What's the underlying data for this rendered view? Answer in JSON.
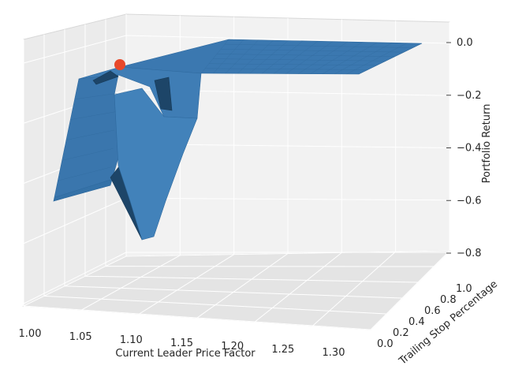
{
  "chart_data": {
    "type": "surface3d",
    "title": "",
    "xlabel": "Current Leader Price Factor",
    "ylabel": "Trailing Stop Percentage",
    "zlabel": "Portfolio Return",
    "x_ticks": [
      "1.00",
      "1.05",
      "1.10",
      "1.15",
      "1.20",
      "1.25",
      "1.30"
    ],
    "y_ticks": [
      "0.0",
      "0.2",
      "0.4",
      "0.6",
      "0.8",
      "1.0"
    ],
    "z_ticks": [
      "0.0",
      "−0.2",
      "−0.4",
      "−0.6",
      "−0.8"
    ],
    "xlim": [
      1.0,
      1.3
    ],
    "ylim": [
      0.0,
      1.0
    ],
    "zlim": [
      -0.8,
      0.0
    ],
    "grid": true,
    "surface_color": "#3b78b0",
    "surface_dark": "#1d4568",
    "marker_color": "#e8482a",
    "marker": {
      "x": 1.0,
      "y": 1.0,
      "z": 0.0
    },
    "surface_points": [
      {
        "x": 1.0,
        "y": 0.0,
        "z": -0.6
      },
      {
        "x": 1.0,
        "y": 1.0,
        "z": -0.12
      },
      {
        "x": 1.08,
        "y": 0.0,
        "z": -0.82
      },
      {
        "x": 1.12,
        "y": 0.0,
        "z": -0.7
      },
      {
        "x": 1.13,
        "y": 1.0,
        "z": -0.08
      },
      {
        "x": 1.3,
        "y": 0.0,
        "z": 0.0
      },
      {
        "x": 1.3,
        "y": 1.0,
        "z": 0.0
      }
    ]
  }
}
